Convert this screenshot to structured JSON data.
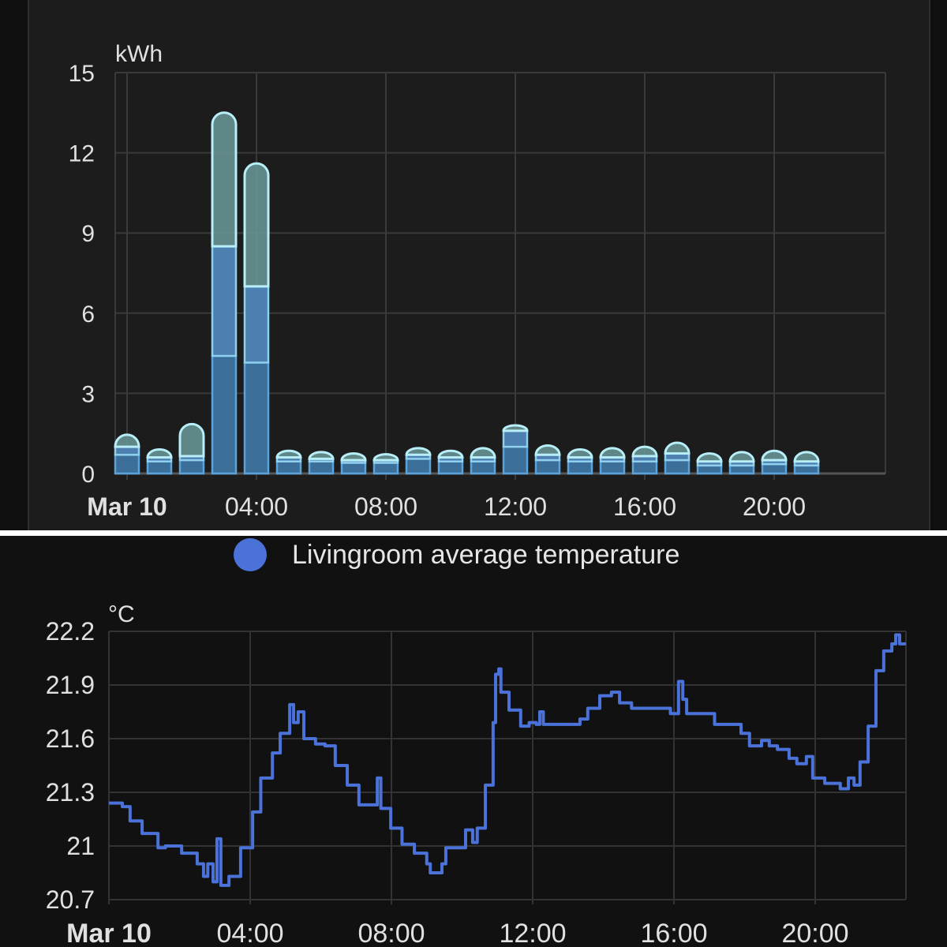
{
  "chart_data": [
    {
      "type": "bar",
      "stacked": true,
      "ylabel": "kWh",
      "ylim": [
        0,
        15
      ],
      "yticks": [
        "0",
        "3",
        "6",
        "9",
        "12",
        "15"
      ],
      "xticks": [
        {
          "hour": 0,
          "label": "Mar 10",
          "bold": true
        },
        {
          "hour": 4,
          "label": "04:00"
        },
        {
          "hour": 8,
          "label": "08:00"
        },
        {
          "hour": 12,
          "label": "12:00"
        },
        {
          "hour": 16,
          "label": "16:00"
        },
        {
          "hour": 20,
          "label": "20:00"
        }
      ],
      "hours": [
        0,
        1,
        2,
        3,
        4,
        5,
        6,
        7,
        8,
        9,
        10,
        11,
        12,
        13,
        14,
        15,
        16,
        17,
        18,
        19,
        20,
        21
      ],
      "grid": true,
      "series": [
        {
          "name": "segment-1",
          "color": "#3b6f99",
          "values": [
            0.7,
            0.45,
            0.5,
            4.4,
            4.15,
            0.45,
            0.45,
            0.4,
            0.4,
            0.55,
            0.45,
            0.45,
            1.0,
            0.5,
            0.45,
            0.45,
            0.45,
            0.5,
            0.3,
            0.3,
            0.35,
            0.3
          ]
        },
        {
          "name": "segment-2",
          "color": "#4d7fb0",
          "values": [
            0.3,
            0.15,
            0.15,
            4.1,
            2.85,
            0.15,
            0.1,
            0.1,
            0.1,
            0.15,
            0.15,
            0.15,
            0.6,
            0.2,
            0.15,
            0.15,
            0.2,
            0.25,
            0.15,
            0.15,
            0.15,
            0.15
          ]
        },
        {
          "name": "segment-3",
          "color": "#6c9a9a",
          "values": [
            0.45,
            0.3,
            1.2,
            5.0,
            4.6,
            0.25,
            0.25,
            0.25,
            0.22,
            0.25,
            0.25,
            0.35,
            0.2,
            0.35,
            0.3,
            0.35,
            0.35,
            0.4,
            0.3,
            0.35,
            0.35,
            0.35
          ]
        }
      ]
    },
    {
      "type": "line",
      "ylabel": "°C",
      "ylim": [
        20.7,
        22.2
      ],
      "yticks": [
        "20.7",
        "21",
        "21.3",
        "21.6",
        "21.9",
        "22.2"
      ],
      "xlim_hours": [
        0,
        22.57
      ],
      "xticks": [
        {
          "hour": 0,
          "label": "Mar 10",
          "bold": true
        },
        {
          "hour": 4,
          "label": "04:00"
        },
        {
          "hour": 8,
          "label": "08:00"
        },
        {
          "hour": 12,
          "label": "12:00"
        },
        {
          "hour": 16,
          "label": "16:00"
        },
        {
          "hour": 20,
          "label": "20:00"
        }
      ],
      "grid": true,
      "legend": {
        "label": "Livingroom average temperature",
        "color": "#4a72d9",
        "placement": "top-center"
      },
      "series": [
        {
          "name": "Livingroom average temperature",
          "color": "#4a72d9",
          "points": [
            [
              0,
              21.24
            ],
            [
              0.38,
              21.22
            ],
            [
              0.6,
              21.14
            ],
            [
              0.94,
              21.07
            ],
            [
              1.27,
              21.07
            ],
            [
              1.39,
              20.99
            ],
            [
              1.6,
              21.0
            ],
            [
              2.06,
              20.96
            ],
            [
              2.5,
              20.9
            ],
            [
              2.68,
              20.83
            ],
            [
              2.8,
              20.9
            ],
            [
              2.95,
              20.8
            ],
            [
              3.06,
              21.04
            ],
            [
              3.17,
              20.78
            ],
            [
              3.4,
              20.83
            ],
            [
              3.73,
              20.99
            ],
            [
              4.07,
              21.19
            ],
            [
              4.3,
              21.38
            ],
            [
              4.63,
              21.52
            ],
            [
              4.85,
              21.63
            ],
            [
              5.12,
              21.79
            ],
            [
              5.23,
              21.69
            ],
            [
              5.36,
              21.75
            ],
            [
              5.52,
              21.6
            ],
            [
              5.85,
              21.57
            ],
            [
              6.12,
              21.56
            ],
            [
              6.41,
              21.45
            ],
            [
              6.75,
              21.34
            ],
            [
              7.08,
              21.23
            ],
            [
              7.42,
              21.23
            ],
            [
              7.6,
              21.38
            ],
            [
              7.7,
              21.21
            ],
            [
              7.98,
              21.1
            ],
            [
              8.3,
              21.01
            ],
            [
              8.65,
              20.96
            ],
            [
              9.0,
              20.9
            ],
            [
              9.1,
              20.85
            ],
            [
              9.43,
              20.9
            ],
            [
              9.54,
              20.99
            ],
            [
              9.99,
              20.99
            ],
            [
              10.1,
              21.09
            ],
            [
              10.3,
              21.02
            ],
            [
              10.43,
              21.1
            ],
            [
              10.66,
              21.34
            ],
            [
              10.88,
              21.69
            ],
            [
              10.95,
              21.96
            ],
            [
              11.04,
              21.99
            ],
            [
              11.1,
              21.86
            ],
            [
              11.33,
              21.76
            ],
            [
              11.66,
              21.67
            ],
            [
              11.9,
              21.69
            ],
            [
              12.1,
              21.68
            ],
            [
              12.2,
              21.75
            ],
            [
              12.3,
              21.68
            ],
            [
              13.34,
              21.71
            ],
            [
              13.56,
              21.77
            ],
            [
              13.9,
              21.84
            ],
            [
              14.23,
              21.86
            ],
            [
              14.46,
              21.8
            ],
            [
              14.8,
              21.77
            ],
            [
              15.46,
              21.77
            ],
            [
              15.8,
              21.77
            ],
            [
              15.9,
              21.74
            ],
            [
              16.13,
              21.92
            ],
            [
              16.25,
              21.82
            ],
            [
              16.36,
              21.74
            ],
            [
              17.0,
              21.74
            ],
            [
              17.15,
              21.68
            ],
            [
              17.7,
              21.68
            ],
            [
              17.9,
              21.63
            ],
            [
              18.14,
              21.56
            ],
            [
              18.48,
              21.59
            ],
            [
              18.7,
              21.56
            ],
            [
              18.93,
              21.54
            ],
            [
              19.26,
              21.49
            ],
            [
              19.48,
              21.46
            ],
            [
              19.75,
              21.5
            ],
            [
              19.93,
              21.38
            ],
            [
              20.16,
              21.38
            ],
            [
              20.27,
              21.35
            ],
            [
              20.6,
              21.35
            ],
            [
              20.71,
              21.32
            ],
            [
              20.94,
              21.38
            ],
            [
              21.1,
              21.34
            ],
            [
              21.27,
              21.47
            ],
            [
              21.5,
              21.67
            ],
            [
              21.72,
              21.98
            ],
            [
              21.94,
              22.09
            ],
            [
              22.17,
              22.13
            ],
            [
              22.28,
              22.18
            ],
            [
              22.39,
              22.13
            ],
            [
              22.57,
              22.13
            ]
          ]
        }
      ]
    }
  ]
}
